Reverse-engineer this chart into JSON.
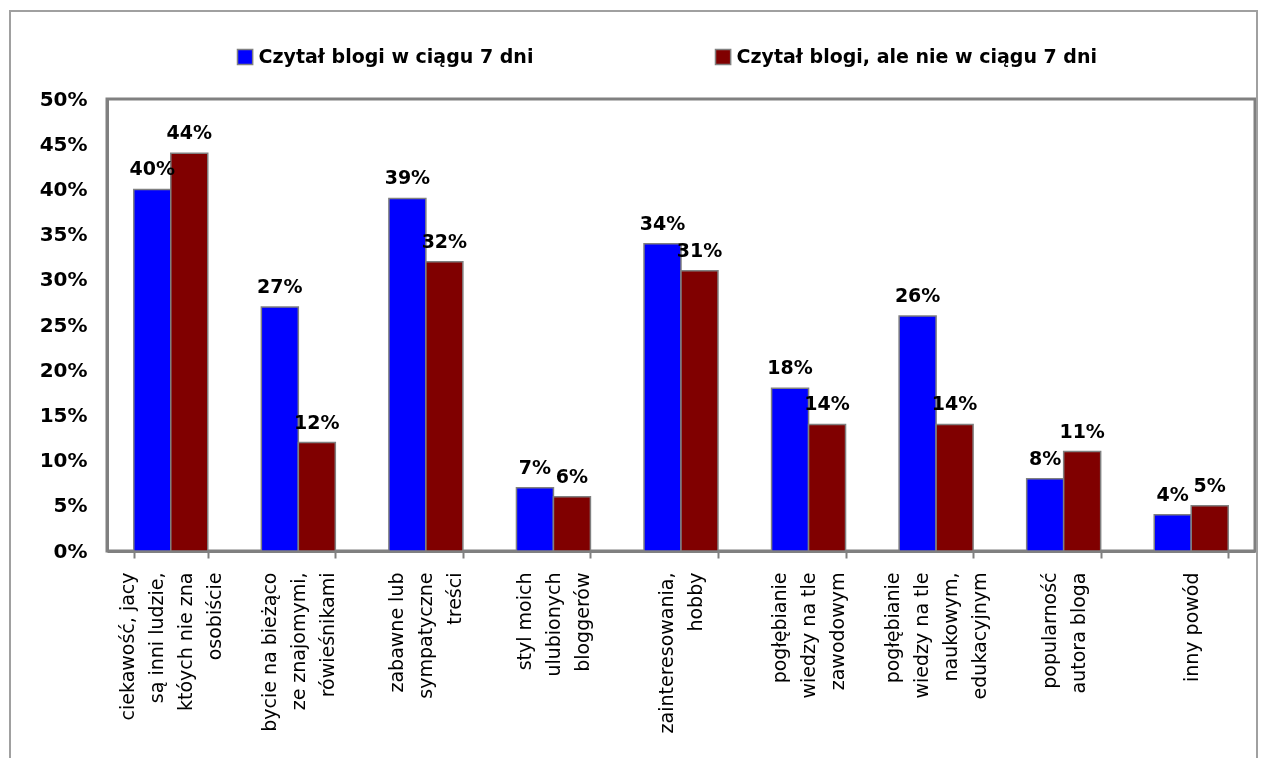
{
  "chart_data": {
    "type": "bar",
    "categories": [
      "ciekawość, jacy są inni ludzie, któych nie zna osobiście",
      "bycie na bieżąco ze znajomymi, rówieśnikami",
      "zabawne lub sympatyczne treści",
      "styl moich ulubionych bloggerów",
      "zainteresowania, hobby",
      "pogłębianie wiedzy na tle zawodowym",
      "pogłębianie wiedzy na tle naukowym, edukacyjnym",
      "popularność autora bloga",
      "inny powód"
    ],
    "series": [
      {
        "name": "Czytał blogi w ciągu 7 dni",
        "color": "#0000ff",
        "values": [
          40,
          27,
          39,
          7,
          34,
          18,
          26,
          8,
          4
        ],
        "value_labels": [
          "40%",
          "27%",
          "39%",
          "7%",
          "34%",
          "18%",
          "26%",
          "8%",
          "4%"
        ]
      },
      {
        "name": "Czytał blogi, ale nie w ciągu 7 dni",
        "color": "#800000",
        "values": [
          44,
          12,
          32,
          6,
          31,
          14,
          14,
          11,
          5
        ],
        "value_labels": [
          "44%",
          "12%",
          "32%",
          "6%",
          "31%",
          "14%",
          "14%",
          "11%",
          "5%"
        ]
      }
    ],
    "ylim": [
      0,
      50
    ],
    "yticks": [
      {
        "value": 0,
        "label": "0%"
      },
      {
        "value": 5,
        "label": "5%"
      },
      {
        "value": 10,
        "label": "10%"
      },
      {
        "value": 15,
        "label": "15%"
      },
      {
        "value": 20,
        "label": "20%"
      },
      {
        "value": 25,
        "label": "25%"
      },
      {
        "value": 30,
        "label": "30%"
      },
      {
        "value": 35,
        "label": "35%"
      },
      {
        "value": 40,
        "label": "40%"
      },
      {
        "value": 45,
        "label": "45%"
      },
      {
        "value": 50,
        "label": "50%"
      }
    ],
    "grid": false,
    "legend": "top"
  }
}
